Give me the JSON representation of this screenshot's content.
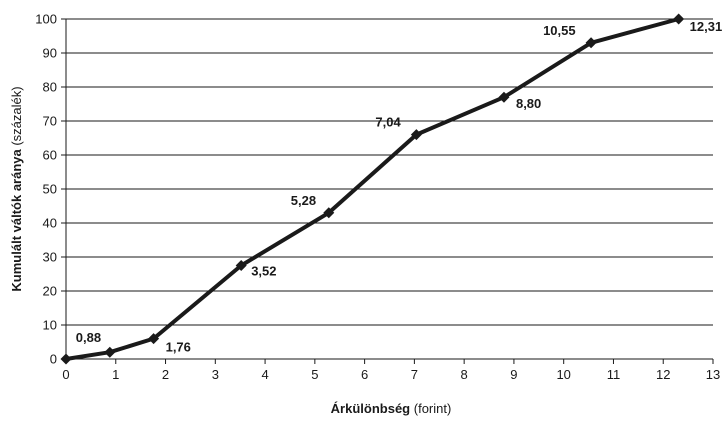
{
  "chart_data": {
    "type": "line",
    "title": "",
    "xlabel_bold": "Árkülönbség",
    "xlabel_rest": " (forint)",
    "ylabel_bold": "Kumulált váltók aránya",
    "ylabel_rest": " (százalék)",
    "xlim": [
      0,
      13
    ],
    "ylim": [
      0,
      100
    ],
    "x_ticks": [
      "0",
      "1",
      "2",
      "3",
      "4",
      "5",
      "6",
      "7",
      "8",
      "9",
      "10",
      "11",
      "12",
      "13"
    ],
    "y_ticks": [
      "0",
      "10",
      "20",
      "30",
      "40",
      "50",
      "60",
      "70",
      "80",
      "90",
      "100"
    ],
    "grid": "horizontal",
    "series": [
      {
        "x": [
          0,
          0.88,
          1.76,
          3.52,
          5.28,
          7.04,
          8.8,
          10.55,
          12.31
        ],
        "y": [
          0,
          2,
          6,
          27.5,
          43,
          66,
          77,
          93,
          100
        ]
      }
    ],
    "point_labels": [
      "",
      "0,88",
      "1,76",
      "3,52",
      "5,28",
      "7,04",
      "8,80",
      "10,55",
      "12,31"
    ]
  }
}
